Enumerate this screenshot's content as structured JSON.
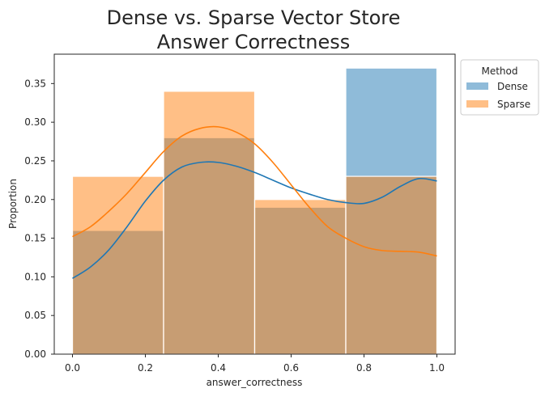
{
  "chart_data": {
    "type": "histogram",
    "title_line1": "Dense vs. Sparse Vector Store",
    "title_line2": "Answer Correctness",
    "xlabel": "answer_correctness",
    "ylabel": "Proportion",
    "xlim": [
      -0.05,
      1.05
    ],
    "ylim": [
      0,
      0.388
    ],
    "xticks": [
      0.0,
      0.2,
      0.4,
      0.6,
      0.8,
      1.0
    ],
    "xtick_labels": [
      "0.0",
      "0.2",
      "0.4",
      "0.6",
      "0.8",
      "1.0"
    ],
    "yticks": [
      0.0,
      0.05,
      0.1,
      0.15,
      0.2,
      0.25,
      0.3,
      0.35
    ],
    "ytick_labels": [
      "0.00",
      "0.05",
      "0.10",
      "0.15",
      "0.20",
      "0.25",
      "0.30",
      "0.35"
    ],
    "bin_edges": [
      0.0,
      0.25,
      0.5,
      0.75,
      1.0
    ],
    "grid": false,
    "legend": {
      "title": "Method",
      "placement": "outside-top-right"
    },
    "series": [
      {
        "name": "Dense",
        "color": "#1f77b4",
        "fill_opacity": 0.5,
        "values": [
          0.16,
          0.28,
          0.19,
          0.37
        ],
        "kde": [
          [
            0.0,
            0.098
          ],
          [
            0.05,
            0.113
          ],
          [
            0.1,
            0.135
          ],
          [
            0.15,
            0.165
          ],
          [
            0.2,
            0.198
          ],
          [
            0.25,
            0.225
          ],
          [
            0.3,
            0.242
          ],
          [
            0.35,
            0.248
          ],
          [
            0.4,
            0.248
          ],
          [
            0.45,
            0.243
          ],
          [
            0.5,
            0.235
          ],
          [
            0.55,
            0.225
          ],
          [
            0.6,
            0.215
          ],
          [
            0.65,
            0.207
          ],
          [
            0.7,
            0.2
          ],
          [
            0.75,
            0.196
          ],
          [
            0.8,
            0.195
          ],
          [
            0.85,
            0.203
          ],
          [
            0.9,
            0.217
          ],
          [
            0.95,
            0.227
          ],
          [
            1.0,
            0.224
          ]
        ]
      },
      {
        "name": "Sparse",
        "color": "#ff7f0e",
        "fill_opacity": 0.5,
        "values": [
          0.23,
          0.34,
          0.2,
          0.23
        ],
        "kde": [
          [
            0.0,
            0.152
          ],
          [
            0.05,
            0.165
          ],
          [
            0.1,
            0.185
          ],
          [
            0.15,
            0.208
          ],
          [
            0.2,
            0.235
          ],
          [
            0.25,
            0.262
          ],
          [
            0.3,
            0.282
          ],
          [
            0.35,
            0.292
          ],
          [
            0.4,
            0.294
          ],
          [
            0.45,
            0.287
          ],
          [
            0.5,
            0.272
          ],
          [
            0.55,
            0.248
          ],
          [
            0.6,
            0.219
          ],
          [
            0.65,
            0.19
          ],
          [
            0.7,
            0.165
          ],
          [
            0.75,
            0.15
          ],
          [
            0.8,
            0.139
          ],
          [
            0.85,
            0.134
          ],
          [
            0.9,
            0.133
          ],
          [
            0.95,
            0.132
          ],
          [
            1.0,
            0.127
          ]
        ]
      }
    ]
  }
}
